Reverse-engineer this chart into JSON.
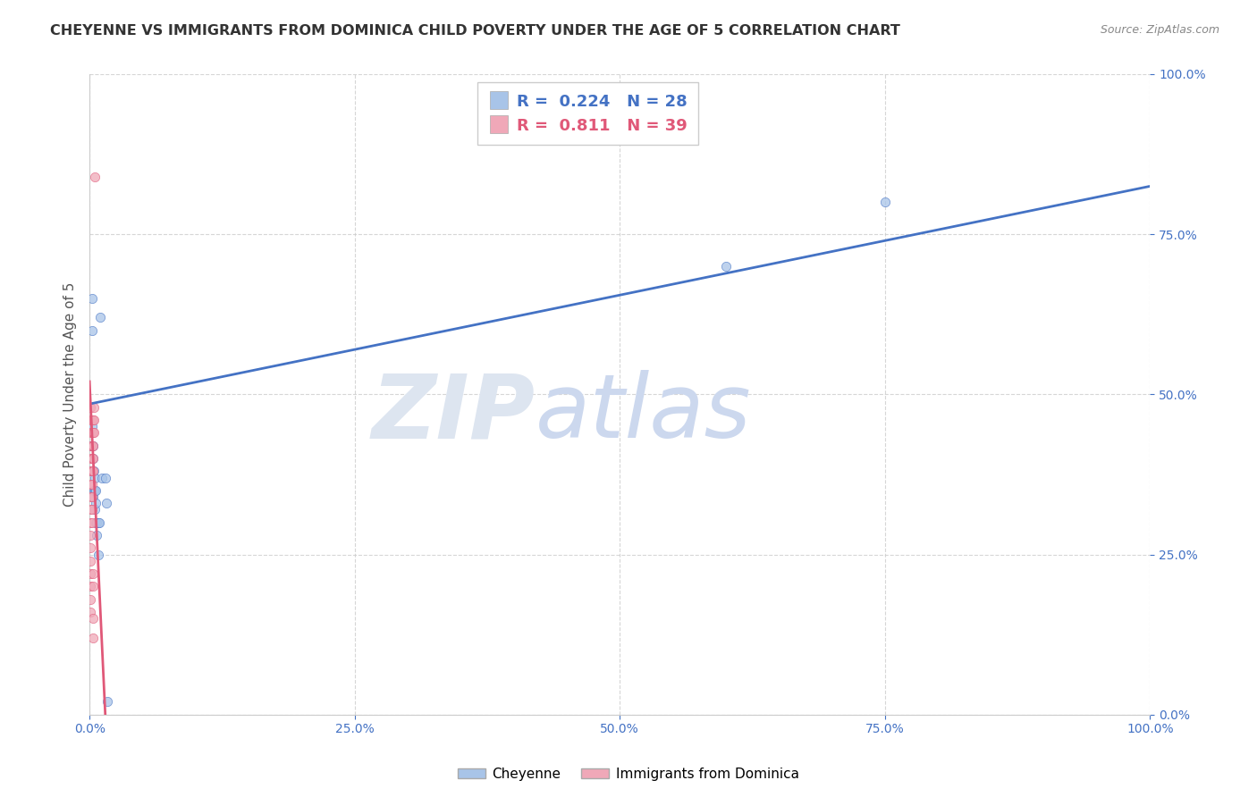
{
  "title": "CHEYENNE VS IMMIGRANTS FROM DOMINICA CHILD POVERTY UNDER THE AGE OF 5 CORRELATION CHART",
  "source_text": "Source: ZipAtlas.com",
  "ylabel": "Child Poverty Under the Age of 5",
  "cheyenne_R": 0.224,
  "cheyenne_N": 28,
  "dominica_R": 0.811,
  "dominica_N": 39,
  "cheyenne_color": "#a8c4e8",
  "dominica_color": "#f0a8b8",
  "cheyenne_line_color": "#4472c4",
  "dominica_line_color": "#e05878",
  "legend_labels": [
    "Cheyenne",
    "Immigrants from Dominica"
  ],
  "cheyenne_x": [
    0.001,
    0.001,
    0.002,
    0.002,
    0.002,
    0.003,
    0.003,
    0.003,
    0.004,
    0.004,
    0.005,
    0.005,
    0.005,
    0.006,
    0.006,
    0.006,
    0.007,
    0.007,
    0.008,
    0.008,
    0.009,
    0.01,
    0.012,
    0.015,
    0.016,
    0.017,
    0.6,
    0.75
  ],
  "cheyenne_y": [
    0.38,
    0.42,
    0.6,
    0.45,
    0.65,
    0.4,
    0.34,
    0.42,
    0.35,
    0.38,
    0.32,
    0.37,
    0.35,
    0.3,
    0.33,
    0.35,
    0.3,
    0.28,
    0.3,
    0.25,
    0.3,
    0.62,
    0.37,
    0.37,
    0.33,
    0.02,
    0.7,
    0.8
  ],
  "dominica_x": [
    0.001,
    0.001,
    0.001,
    0.001,
    0.001,
    0.001,
    0.001,
    0.001,
    0.001,
    0.001,
    0.001,
    0.001,
    0.001,
    0.001,
    0.001,
    0.001,
    0.001,
    0.002,
    0.002,
    0.002,
    0.002,
    0.002,
    0.002,
    0.002,
    0.002,
    0.002,
    0.003,
    0.003,
    0.003,
    0.003,
    0.003,
    0.003,
    0.003,
    0.003,
    0.003,
    0.004,
    0.004,
    0.004,
    0.005
  ],
  "dominica_y": [
    0.48,
    0.46,
    0.44,
    0.42,
    0.4,
    0.38,
    0.36,
    0.34,
    0.32,
    0.3,
    0.28,
    0.26,
    0.24,
    0.22,
    0.2,
    0.18,
    0.16,
    0.46,
    0.44,
    0.42,
    0.4,
    0.38,
    0.36,
    0.34,
    0.32,
    0.3,
    0.46,
    0.44,
    0.42,
    0.4,
    0.38,
    0.22,
    0.2,
    0.15,
    0.12,
    0.48,
    0.46,
    0.44,
    0.84
  ],
  "cheyenne_intercept": 0.485,
  "cheyenne_slope": 0.34,
  "dominica_intercept": 0.52,
  "dominica_slope": -35.0,
  "xlim": [
    0.0,
    1.0
  ],
  "ylim": [
    0.0,
    1.0
  ],
  "xticks": [
    0.0,
    0.25,
    0.5,
    0.75,
    1.0
  ],
  "yticks": [
    0.0,
    0.25,
    0.5,
    0.75,
    1.0
  ],
  "grid_color": "#cccccc",
  "background_color": "#ffffff"
}
